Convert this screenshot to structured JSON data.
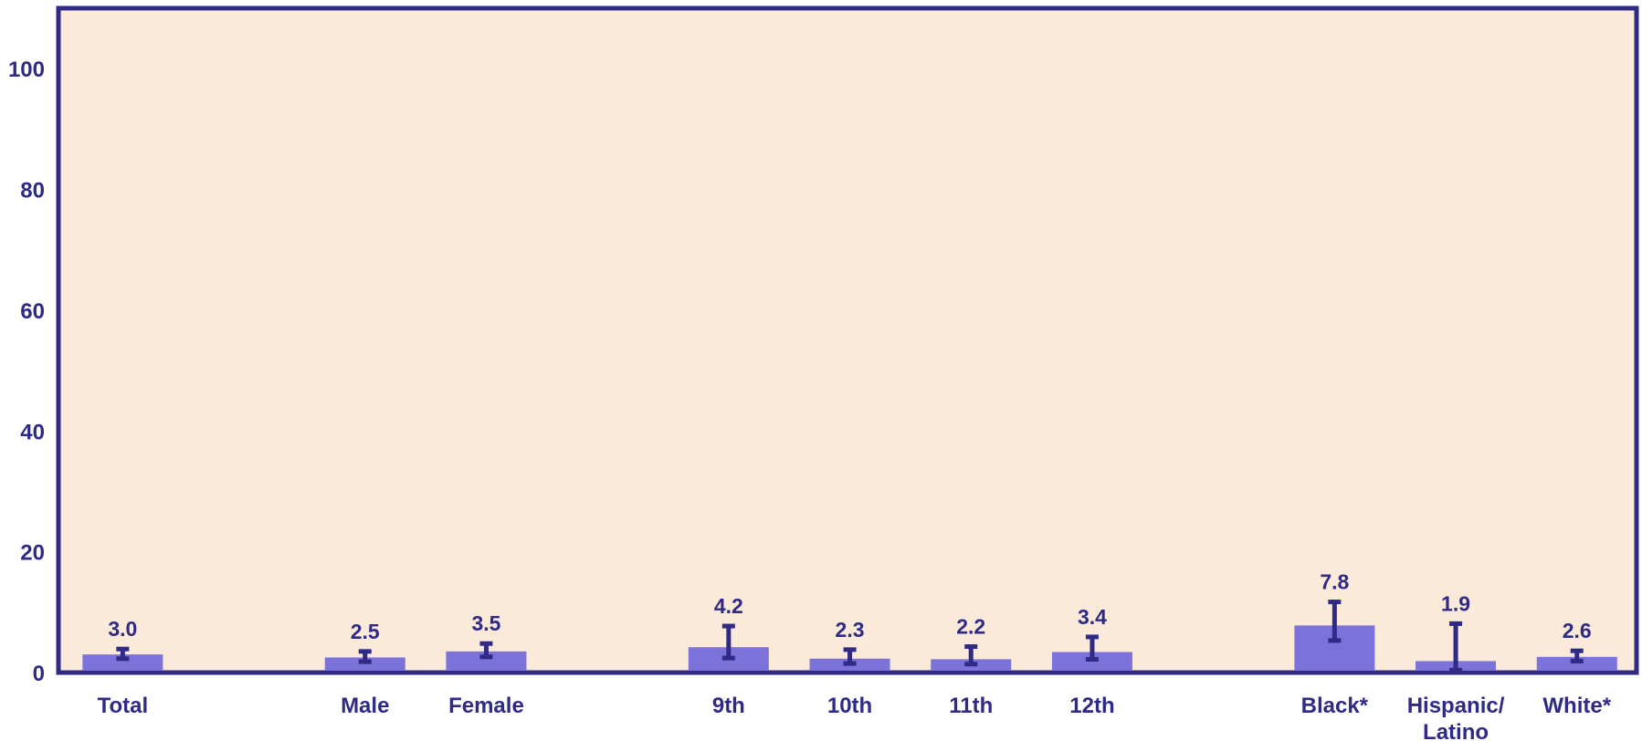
{
  "chart_data": {
    "type": "bar",
    "categories": [
      "Total",
      "Male",
      "Female",
      "9th",
      "10th",
      "11th",
      "12th",
      "Black*",
      "Hispanic/ Latino",
      "White*"
    ],
    "category_lines": [
      [
        "Total"
      ],
      [
        "Male"
      ],
      [
        "Female"
      ],
      [
        "9th"
      ],
      [
        "10th"
      ],
      [
        "11th"
      ],
      [
        "12th"
      ],
      [
        "Black*"
      ],
      [
        "Hispanic/",
        "Latino"
      ],
      [
        "White*"
      ]
    ],
    "groups": [
      [
        0
      ],
      [
        1,
        2
      ],
      [
        3,
        4,
        5,
        6
      ],
      [
        7,
        8,
        9
      ]
    ],
    "values": [
      3.0,
      2.5,
      3.5,
      4.2,
      2.3,
      2.2,
      3.4,
      7.8,
      1.9,
      2.6
    ],
    "value_labels": [
      "3.0",
      "2.5",
      "3.5",
      "4.2",
      "2.3",
      "2.2",
      "3.4",
      "7.8",
      "1.9",
      "2.6"
    ],
    "error_low": [
      2.3,
      1.8,
      2.6,
      2.4,
      1.5,
      1.4,
      2.2,
      5.3,
      0.4,
      1.9
    ],
    "error_high": [
      3.9,
      3.5,
      4.8,
      7.7,
      3.8,
      4.3,
      5.9,
      11.7,
      8.1,
      3.6
    ],
    "ylim": [
      0,
      110
    ],
    "yticks": [
      0,
      20,
      40,
      60,
      80,
      100
    ],
    "title": "",
    "xlabel": "",
    "ylabel": "",
    "grid": false,
    "legend": "none"
  },
  "colors": {
    "plot_background": "#fbeada",
    "frame": "#2e2a85",
    "bar_fill": "#7b73d9",
    "error_bar": "#2e2a85",
    "text": "#2e2a85"
  }
}
